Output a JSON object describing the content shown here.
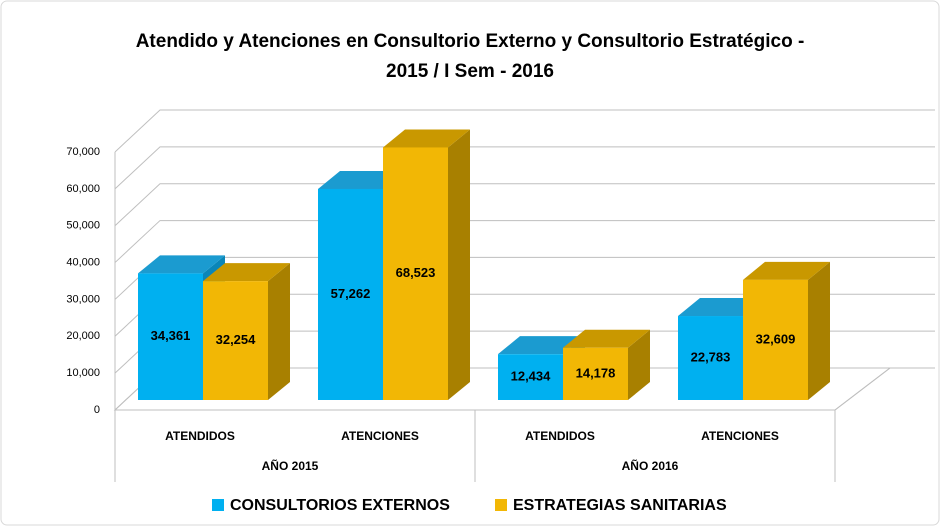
{
  "chart_data": {
    "type": "bar3d",
    "title": [
      "Atendido y Atenciones en Consultorio Externo y Consultorio Estratégico -",
      "2015 / I Sem - 2016"
    ],
    "categories": [
      "ATENDIDOS",
      "ATENCIONES",
      "ATENDIDOS",
      "ATENCIONES"
    ],
    "groups": [
      "AÑO 2015",
      "AÑO 2016"
    ],
    "series": [
      {
        "name": "CONSULTORIOS EXTERNOS",
        "color": "#00b0f0",
        "side": "#0a86b8",
        "top": "#1b9bd0",
        "values": [
          34361,
          57262,
          12434,
          22783
        ],
        "value_labels": [
          "34,361",
          "57,262",
          "12,434",
          "22,783"
        ]
      },
      {
        "name": "ESTRATEGIAS SANITARIAS",
        "color": "#f2b705",
        "side": "#a88000",
        "top": "#c99800",
        "values": [
          32254,
          68523,
          14178,
          32609
        ],
        "value_labels": [
          "32,254",
          "68,523",
          "14,178",
          "32,609"
        ]
      }
    ],
    "ylim": [
      0,
      70000
    ],
    "yticks": [
      0,
      {
        "value": 10000,
        "label": "10,000"
      },
      {
        "value": 20000,
        "label": "20,000"
      },
      {
        "value": 30000,
        "label": "30,000"
      },
      {
        "value": 40000,
        "label": "40,000"
      },
      {
        "value": 50000,
        "label": "50,000"
      },
      {
        "value": 60000,
        "label": "60,000"
      },
      {
        "value": 70000,
        "label": "70,000"
      }
    ],
    "grid": true
  }
}
